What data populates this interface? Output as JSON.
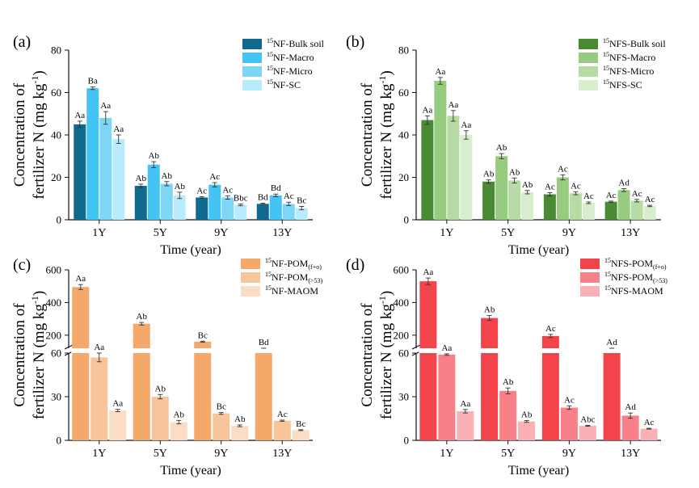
{
  "chart_data": [
    {
      "type": "bar",
      "panel": "(a)",
      "xlabel": "Time (year)",
      "ylabel": [
        "Concentration of",
        "fertilizer N (mg kg",
        "-1",
        ")"
      ],
      "ylim": [
        0,
        80
      ],
      "yticks": [
        0,
        20,
        40,
        60,
        80
      ],
      "categories": [
        "1Y",
        "5Y",
        "9Y",
        "13Y"
      ],
      "legend_position": "top-right",
      "series": [
        {
          "name": {
            "sup": "15",
            "base": "NF-Bulk soil",
            "sub": ""
          },
          "color": "#0f6a8e",
          "values": [
            45,
            16,
            10.5,
            7.5
          ],
          "errors": [
            1.5,
            0.8,
            0.4,
            0.3
          ],
          "letters": [
            "Aa",
            "Ab",
            "Ac",
            "Bd"
          ]
        },
        {
          "name": {
            "sup": "15",
            "base": "NF-Macro",
            "sub": ""
          },
          "color": "#44c4f4",
          "values": [
            62,
            26,
            16.5,
            11.5
          ],
          "errors": [
            0.6,
            1.4,
            1.0,
            0.6
          ],
          "letters": [
            "Ba",
            "Ab",
            "Ac",
            "Bd"
          ]
        },
        {
          "name": {
            "sup": "15",
            "base": "NF-Micro",
            "sub": ""
          },
          "color": "#7ed6f7",
          "values": [
            48,
            17,
            10.5,
            7.5
          ],
          "errors": [
            3.0,
            1.0,
            0.8,
            0.8
          ],
          "letters": [
            "Aa",
            "Ab",
            "Ac",
            "Ac"
          ]
        },
        {
          "name": {
            "sup": "15",
            "base": "NF-SC",
            "sub": ""
          },
          "color": "#b8ebfb",
          "values": [
            38,
            11.5,
            7,
            5.5
          ],
          "errors": [
            2.0,
            1.5,
            0.4,
            0.8
          ],
          "letters": [
            "Aa",
            "Ab",
            "Bbc",
            "Bc"
          ]
        }
      ]
    },
    {
      "type": "bar",
      "panel": "(b)",
      "xlabel": "Time (year)",
      "ylabel": [
        "Concentration of",
        "fertilizer N (mg kg",
        "-1",
        ")"
      ],
      "ylim": [
        0,
        80
      ],
      "yticks": [
        0,
        20,
        40,
        60,
        80
      ],
      "categories": [
        "1Y",
        "5Y",
        "9Y",
        "13Y"
      ],
      "legend_position": "top-right",
      "series": [
        {
          "name": {
            "sup": "15",
            "base": "NFS-Bulk soil",
            "sub": ""
          },
          "color": "#4a8a34",
          "values": [
            47,
            18,
            12,
            8.5
          ],
          "errors": [
            2.0,
            0.8,
            0.8,
            0.3
          ],
          "letters": [
            "Aa",
            "Ab",
            "Ac",
            "Ac"
          ]
        },
        {
          "name": {
            "sup": "15",
            "base": "NFS-Macro",
            "sub": ""
          },
          "color": "#97cc80",
          "values": [
            65.5,
            30,
            20,
            14
          ],
          "errors": [
            1.6,
            1.2,
            1.2,
            0.7
          ],
          "letters": [
            "Aa",
            "Ab",
            "Ac",
            "Ad"
          ]
        },
        {
          "name": {
            "sup": "15",
            "base": "NFS-Micro",
            "sub": ""
          },
          "color": "#b6dba5",
          "values": [
            49,
            18.5,
            12.5,
            9
          ],
          "errors": [
            2.5,
            1.2,
            0.7,
            0.6
          ],
          "letters": [
            "Aa",
            "Ab",
            "Ac",
            "Ac"
          ]
        },
        {
          "name": {
            "sup": "15",
            "base": "NFS-SC",
            "sub": ""
          },
          "color": "#d8edcc",
          "values": [
            40,
            13,
            8,
            6.5
          ],
          "errors": [
            2.0,
            0.8,
            0.4,
            0.3
          ],
          "letters": [
            "Aa",
            "Ab",
            "Ac",
            "Ac"
          ]
        }
      ]
    },
    {
      "type": "bar",
      "panel": "(c)",
      "xlabel": "Time (year)",
      "ylabel": [
        "Concentration of",
        "fertilizer N (mg kg",
        "-1",
        ")"
      ],
      "axis_break": [
        60,
        120
      ],
      "ylim_lower": [
        0,
        60
      ],
      "ylim_upper": [
        120,
        600
      ],
      "yticks": [
        0,
        30,
        60,
        200,
        400,
        600
      ],
      "categories": [
        "1Y",
        "5Y",
        "9Y",
        "13Y"
      ],
      "legend_position": "top-right",
      "series": [
        {
          "name": {
            "sup": "15",
            "base": "NF-POM",
            "sub": "(f+o)"
          },
          "color": "#f4a86a",
          "values": [
            495,
            270,
            160,
            88
          ],
          "errors": [
            15,
            8,
            3,
            3
          ],
          "letters": [
            "Aa",
            "Ab",
            "Bc",
            "Bd"
          ]
        },
        {
          "name": {
            "sup": "15",
            "base": "NF-POM",
            "sub": "(>53)"
          },
          "color": "#f8c49a",
          "values": [
            57,
            30,
            18.5,
            13.5
          ],
          "errors": [
            3.0,
            1.5,
            0.6,
            0.4
          ],
          "letters": [
            "Aa",
            "Ab",
            "Bc",
            "Ac"
          ]
        },
        {
          "name": {
            "sup": "15",
            "base": "NF-MAOM",
            "sub": ""
          },
          "color": "#fbdcc4",
          "values": [
            20.5,
            12.5,
            10,
            7
          ],
          "errors": [
            0.8,
            1.2,
            0.6,
            0.3
          ],
          "letters": [
            "Aa",
            "Ab",
            "Ab",
            "Bc"
          ]
        }
      ]
    },
    {
      "type": "bar",
      "panel": "(d)",
      "xlabel": "Time (year)",
      "ylabel": [
        "Concentration of",
        "fertilizer N (mg kg",
        "-1",
        ")"
      ],
      "axis_break": [
        60,
        120
      ],
      "ylim_lower": [
        0,
        60
      ],
      "ylim_upper": [
        120,
        600
      ],
      "yticks": [
        0,
        30,
        60,
        200,
        400,
        600
      ],
      "categories": [
        "1Y",
        "5Y",
        "9Y",
        "13Y"
      ],
      "legend_position": "top-right",
      "series": [
        {
          "name": {
            "sup": "15",
            "base": "NFS-POM",
            "sub": "(f+o)"
          },
          "color": "#f2444a",
          "values": [
            530,
            305,
            195,
            113
          ],
          "errors": [
            20,
            15,
            10,
            5
          ],
          "letters": [
            "Aa",
            "Ab",
            "Ac",
            "Ad"
          ]
        },
        {
          "name": {
            "sup": "15",
            "base": "NFS-POM",
            "sub": "(>53)"
          },
          "color": "#f88088",
          "values": [
            59,
            34,
            22.5,
            17
          ],
          "errors": [
            0.5,
            2.0,
            1.2,
            1.8
          ],
          "letters": [
            "Aa",
            "Ab",
            "Ac",
            "Ad"
          ]
        },
        {
          "name": {
            "sup": "15",
            "base": "NFS-MAOM",
            "sub": ""
          },
          "color": "#fbb0b6",
          "values": [
            20,
            13,
            10,
            8
          ],
          "errors": [
            1.2,
            0.6,
            0.3,
            0.3
          ],
          "letters": [
            "Aa",
            "Ab",
            "Abc",
            "Ac"
          ]
        }
      ]
    }
  ]
}
